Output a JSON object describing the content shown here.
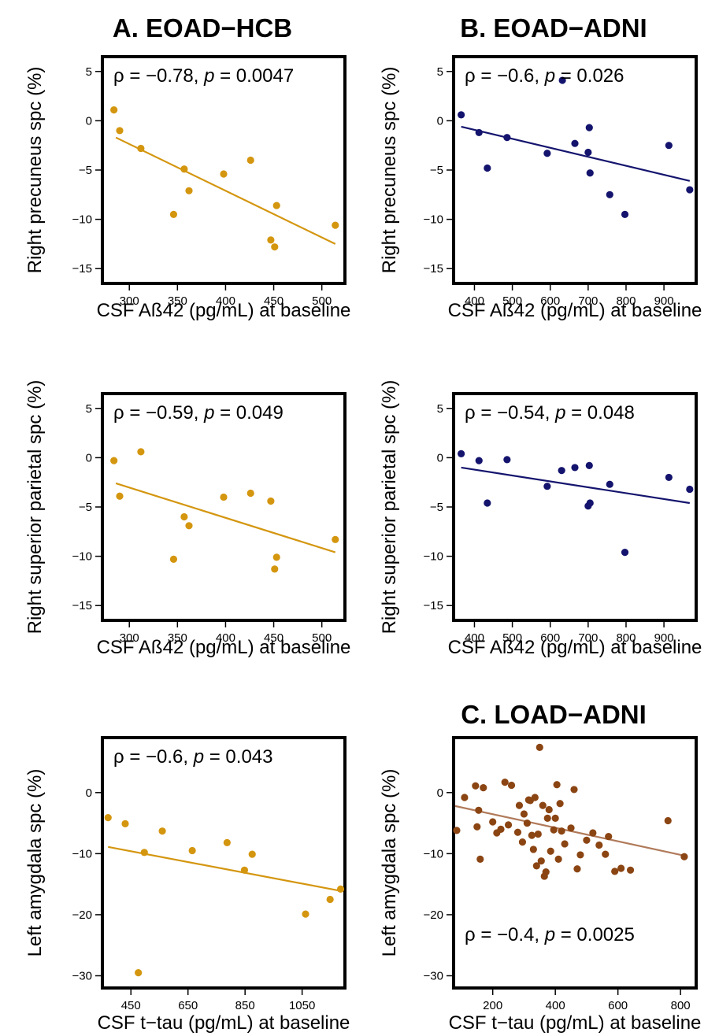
{
  "column_titles": [
    {
      "text": "A. EOAD−HCB"
    },
    {
      "text": "B. EOAD−ADNI"
    },
    {
      "text": "C. LOAD−ADNI"
    }
  ],
  "colors": {
    "eoad_hcb": "#D4960F",
    "eoad_adni": "#14146E",
    "load_adni": "#8B4513",
    "load_line": "#B07A5A"
  },
  "chart_data": [
    {
      "type": "scatter",
      "panel": "A-top",
      "xlabel": "CSF Aß42 (pg/mL) at baseline",
      "ylabel": "Right precuneus spc (%)",
      "annotation": {
        "rho": "ρ = −0.78, ",
        "p_label": "p",
        "p_value": " = 0.0047"
      },
      "xlim": [
        272,
        524
      ],
      "ylim": [
        -16.5,
        6.5
      ],
      "xticks": [
        300,
        350,
        400,
        450,
        500
      ],
      "yticks": [
        5,
        0,
        -5,
        -10,
        -15
      ],
      "points": [
        [
          284,
          1.1
        ],
        [
          290,
          -1.0
        ],
        [
          312,
          -2.8
        ],
        [
          346,
          -9.5
        ],
        [
          357,
          -4.9
        ],
        [
          362,
          -7.1
        ],
        [
          398,
          -5.4
        ],
        [
          426,
          -4.0
        ],
        [
          447,
          -12.1
        ],
        [
          451,
          -12.8
        ],
        [
          453,
          -8.6
        ],
        [
          514,
          -10.6
        ]
      ],
      "fit": [
        [
          286,
          -1.7
        ],
        [
          514,
          -12.5
        ]
      ]
    },
    {
      "type": "scatter",
      "panel": "B-top",
      "xlabel": "CSF Aß42 (pg/mL) at baseline",
      "ylabel": "Right precuneus spc (%)",
      "annotation": {
        "rho": "ρ = −0.6, ",
        "p_label": "p",
        "p_value": " = 0.026"
      },
      "xlim": [
        345,
        985
      ],
      "ylim": [
        -16.5,
        6.5
      ],
      "xticks": [
        400,
        500,
        600,
        700,
        800,
        900
      ],
      "yticks": [
        5,
        0,
        -5,
        -10,
        -15
      ],
      "points": [
        [
          365,
          0.6
        ],
        [
          412,
          -1.2
        ],
        [
          434,
          -4.8
        ],
        [
          486,
          -1.7
        ],
        [
          592,
          -3.3
        ],
        [
          632,
          4.1
        ],
        [
          665,
          -2.3
        ],
        [
          700,
          -3.2
        ],
        [
          703,
          -0.7
        ],
        [
          705,
          -5.3
        ],
        [
          757,
          -7.5
        ],
        [
          797,
          -9.5
        ],
        [
          913,
          -2.5
        ],
        [
          968,
          -7.0
        ]
      ],
      "fit": [
        [
          365,
          -0.6
        ],
        [
          968,
          -6.1
        ]
      ]
    },
    {
      "type": "scatter",
      "panel": "A-middle",
      "xlabel": "CSF Aß42 (pg/mL) at baseline",
      "ylabel": "Right superior parietal spc (%)",
      "annotation": {
        "rho": "ρ = −0.59, ",
        "p_label": "p",
        "p_value": " = 0.049"
      },
      "xlim": [
        272,
        524
      ],
      "ylim": [
        -16.5,
        6.5
      ],
      "xticks": [
        300,
        350,
        400,
        450,
        500
      ],
      "yticks": [
        5,
        0,
        -5,
        -10,
        -15
      ],
      "points": [
        [
          284,
          -0.3
        ],
        [
          290,
          -3.9
        ],
        [
          312,
          0.6
        ],
        [
          346,
          -10.3
        ],
        [
          357,
          -6.0
        ],
        [
          362,
          -6.9
        ],
        [
          398,
          -4.0
        ],
        [
          426,
          -3.6
        ],
        [
          447,
          -4.4
        ],
        [
          451,
          -11.3
        ],
        [
          453,
          -10.1
        ],
        [
          514,
          -8.3
        ]
      ],
      "fit": [
        [
          286,
          -2.6
        ],
        [
          514,
          -9.6
        ]
      ]
    },
    {
      "type": "scatter",
      "panel": "B-middle",
      "xlabel": "CSF Aß42 (pg/mL) at baseline",
      "ylabel": "Right superior parietal spc (%)",
      "annotation": {
        "rho": "ρ = −0.54, ",
        "p_label": "p",
        "p_value": " = 0.048"
      },
      "xlim": [
        345,
        985
      ],
      "ylim": [
        -16.5,
        6.5
      ],
      "xticks": [
        400,
        500,
        600,
        700,
        800,
        900
      ],
      "yticks": [
        5,
        0,
        -5,
        -10,
        -15
      ],
      "points": [
        [
          365,
          0.4
        ],
        [
          412,
          -0.3
        ],
        [
          434,
          -4.6
        ],
        [
          486,
          -0.2
        ],
        [
          592,
          -2.9
        ],
        [
          630,
          -1.3
        ],
        [
          665,
          -1.0
        ],
        [
          700,
          -4.9
        ],
        [
          703,
          -0.8
        ],
        [
          705,
          -4.6
        ],
        [
          757,
          -2.7
        ],
        [
          797,
          -9.6
        ],
        [
          913,
          -2.0
        ],
        [
          968,
          -3.2
        ]
      ],
      "fit": [
        [
          365,
          -1.0
        ],
        [
          968,
          -4.6
        ]
      ]
    },
    {
      "type": "scatter",
      "panel": "A-bottom",
      "xlabel": "CSF t−tau (pg/mL) at baseline",
      "ylabel": "Left amygdala spc (%)",
      "annotation": {
        "rho": "ρ = −0.6, ",
        "p_label": "p",
        "p_value": " = 0.043"
      },
      "xlim": [
        350,
        1200
      ],
      "ylim": [
        -32,
        9
      ],
      "xticks": [
        450,
        650,
        850,
        1050
      ],
      "yticks": [
        0,
        -10,
        -20,
        -30
      ],
      "points": [
        [
          370,
          -4.1
        ],
        [
          430,
          -5.1
        ],
        [
          476,
          -29.5
        ],
        [
          497,
          -9.8
        ],
        [
          560,
          -6.3
        ],
        [
          665,
          -9.5
        ],
        [
          787,
          -8.2
        ],
        [
          848,
          -12.7
        ],
        [
          875,
          -10.1
        ],
        [
          1062,
          -19.9
        ],
        [
          1148,
          -17.5
        ],
        [
          1185,
          -15.8
        ]
      ],
      "fit": [
        [
          370,
          -8.9
        ],
        [
          1185,
          -16.1
        ]
      ]
    },
    {
      "type": "scatter",
      "panel": "C-bottom",
      "xlabel": "CSF t−tau (pg/mL) at baseline",
      "ylabel": "Left amygdala spc (%)",
      "annotation": {
        "rho": "ρ = −0.4, ",
        "p_label": "p",
        "p_value": " = 0.0025"
      },
      "xlim": [
        75,
        850
      ],
      "ylim": [
        -32,
        9
      ],
      "xticks": [
        200,
        400,
        600,
        800
      ],
      "yticks": [
        0,
        -10,
        -20,
        -30
      ],
      "points": [
        [
          85,
          -6.2
        ],
        [
          110,
          -0.8
        ],
        [
          145,
          1.1
        ],
        [
          150,
          -5.6
        ],
        [
          155,
          -2.9
        ],
        [
          160,
          -10.9
        ],
        [
          170,
          0.8
        ],
        [
          200,
          -4.8
        ],
        [
          213,
          -6.6
        ],
        [
          226,
          -6.0
        ],
        [
          239,
          1.7
        ],
        [
          250,
          -5.3
        ],
        [
          260,
          1.2
        ],
        [
          280,
          -6.5
        ],
        [
          285,
          -2.1
        ],
        [
          295,
          -8.1
        ],
        [
          300,
          -3.5
        ],
        [
          310,
          -5.0
        ],
        [
          315,
          -1.2
        ],
        [
          320,
          -1.3
        ],
        [
          325,
          -7.0
        ],
        [
          330,
          -9.3
        ],
        [
          335,
          -0.8
        ],
        [
          340,
          -12.0
        ],
        [
          345,
          -6.8
        ],
        [
          350,
          7.4
        ],
        [
          355,
          -11.2
        ],
        [
          360,
          -2.1
        ],
        [
          365,
          -13.7
        ],
        [
          370,
          -13.0
        ],
        [
          375,
          -4.2
        ],
        [
          380,
          -2.8
        ],
        [
          385,
          -9.6
        ],
        [
          395,
          -6.1
        ],
        [
          400,
          -4.2
        ],
        [
          405,
          1.3
        ],
        [
          410,
          -10.9
        ],
        [
          415,
          -1.8
        ],
        [
          420,
          -6.3
        ],
        [
          430,
          -8.4
        ],
        [
          450,
          -5.8
        ],
        [
          460,
          0.5
        ],
        [
          470,
          -12.5
        ],
        [
          480,
          -10.2
        ],
        [
          500,
          -7.8
        ],
        [
          520,
          -6.6
        ],
        [
          540,
          -8.6
        ],
        [
          560,
          -10.1
        ],
        [
          570,
          -7.2
        ],
        [
          590,
          -12.9
        ],
        [
          610,
          -12.4
        ],
        [
          640,
          -12.7
        ],
        [
          760,
          -4.6
        ],
        [
          812,
          -10.5
        ]
      ],
      "fit": [
        [
          80,
          -2.2
        ],
        [
          818,
          -10.4
        ]
      ]
    }
  ]
}
